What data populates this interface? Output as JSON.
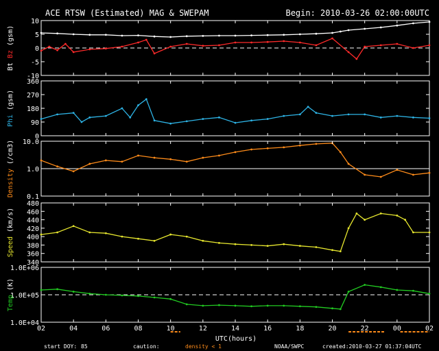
{
  "header": {
    "title": "ACE RTSW (Estimated) MAG & SWEPAM",
    "begin": "Begin: 2010-03-26 02:00:00UTC"
  },
  "footer": {
    "start_doy_label": "start DOY:",
    "start_doy": "85",
    "caution_label": "caution:",
    "caution_value": "density < 1",
    "agency": "NOAA/SWPC",
    "created": "created:2010-03-27 01:37:04UTC"
  },
  "colors": {
    "bt": "#ffffff",
    "bz": "#ff2a2a",
    "phi": "#2eb4e6",
    "density": "#ff8c1a",
    "speed": "#e6e62e",
    "temp": "#22cc22",
    "axis": "#ffffff",
    "background": "#000000"
  },
  "chart_data": {
    "type": "line",
    "x_axis": {
      "label": "UTC(hours)",
      "ticks": [
        "02",
        "04",
        "06",
        "08",
        "10",
        "12",
        "14",
        "16",
        "18",
        "20",
        "22",
        "00",
        "02"
      ],
      "range_hours": [
        2,
        26
      ]
    },
    "panels": [
      {
        "id": "mag",
        "ylabel_parts": [
          {
            "text": "Bt",
            "color": "#ffffff"
          },
          {
            "text": " Bz",
            "color": "#ff2a2a"
          },
          {
            "text": " (gsm)",
            "color": "#ffffff"
          }
        ],
        "ylim": [
          -10,
          10
        ],
        "scale": "linear",
        "ticks": [
          10,
          5,
          0,
          -5,
          -10
        ],
        "tick_labels": [
          "10",
          "5",
          "0",
          "-5",
          "-10"
        ],
        "reference_line": 0,
        "series": [
          {
            "name": "Bt",
            "color": "#ffffff",
            "x": [
              2,
              3,
              4,
              5,
              6,
              7,
              8,
              9,
              10,
              11,
              12,
              13,
              14,
              15,
              16,
              17,
              18,
              19,
              20,
              20.5,
              21,
              22,
              23,
              24,
              25,
              26
            ],
            "y": [
              5.5,
              5.3,
              5.0,
              4.8,
              4.8,
              4.5,
              4.6,
              4.2,
              4.0,
              4.3,
              4.4,
              4.5,
              4.5,
              4.6,
              4.7,
              4.8,
              5.0,
              5.2,
              5.5,
              6.0,
              6.5,
              7.0,
              7.5,
              8.2,
              9.0,
              9.5
            ]
          },
          {
            "name": "Bz",
            "color": "#ff2a2a",
            "x": [
              2,
              2.5,
              3,
              3.5,
              4,
              5,
              6,
              7,
              8,
              8.5,
              9,
              10,
              11,
              12,
              13,
              14,
              15,
              16,
              17,
              18,
              19,
              20,
              21,
              21.5,
              22,
              23,
              24,
              25,
              26
            ],
            "y": [
              -1,
              0.5,
              -0.8,
              1.5,
              -1.5,
              -0.5,
              -0.2,
              0.5,
              2.0,
              3.0,
              -2.0,
              0.5,
              1.5,
              0.8,
              1.0,
              2.0,
              2.0,
              2.2,
              2.5,
              2.0,
              1.0,
              3.5,
              -1.5,
              -4.0,
              0.5,
              1.0,
              1.5,
              0.0,
              1.0
            ]
          }
        ]
      },
      {
        "id": "phi",
        "ylabel_parts": [
          {
            "text": "Phi",
            "color": "#2eb4e6"
          },
          {
            "text": " (gsm)",
            "color": "#ffffff"
          }
        ],
        "ylim": [
          0,
          360
        ],
        "scale": "linear",
        "ticks": [
          360,
          270,
          180,
          90,
          0
        ],
        "tick_labels": [
          "360",
          "270",
          "180",
          "90",
          "0"
        ],
        "series": [
          {
            "name": "Phi",
            "color": "#2eb4e6",
            "x": [
              2,
              3,
              4,
              4.5,
              5,
              6,
              7,
              7.5,
              8,
              8.5,
              9,
              10,
              11,
              12,
              13,
              14,
              15,
              16,
              17,
              18,
              18.5,
              19,
              20,
              21,
              22,
              23,
              24,
              25,
              26
            ],
            "y": [
              110,
              140,
              150,
              90,
              120,
              130,
              180,
              120,
              200,
              240,
              100,
              80,
              95,
              110,
              120,
              85,
              100,
              110,
              130,
              140,
              190,
              150,
              130,
              140,
              140,
              120,
              130,
              120,
              115
            ]
          }
        ]
      },
      {
        "id": "density",
        "ylabel_parts": [
          {
            "text": "Density",
            "color": "#ff8c1a"
          },
          {
            "text": " (/cm3)",
            "color": "#ffffff"
          }
        ],
        "ylim": [
          0.1,
          10
        ],
        "scale": "log",
        "ticks": [
          10,
          1,
          0.1
        ],
        "tick_labels": [
          "10.0",
          "1.0",
          "0.1"
        ],
        "reference_line": 1,
        "series": [
          {
            "name": "Density",
            "color": "#ff8c1a",
            "x": [
              2,
              3,
              4,
              5,
              6,
              7,
              8,
              9,
              10,
              11,
              12,
              13,
              14,
              15,
              16,
              17,
              18,
              19,
              20,
              20.5,
              21,
              22,
              23,
              24,
              25,
              26
            ],
            "y": [
              2.0,
              1.2,
              0.8,
              1.5,
              2.0,
              1.8,
              3.0,
              2.5,
              2.2,
              1.8,
              2.5,
              3.0,
              4.0,
              5.0,
              5.5,
              6.0,
              7.0,
              8.0,
              8.5,
              4.0,
              1.5,
              0.6,
              0.5,
              0.9,
              0.6,
              0.7
            ]
          }
        ]
      },
      {
        "id": "speed",
        "ylabel_parts": [
          {
            "text": "Speed",
            "color": "#e6e62e"
          },
          {
            "text": " (km/s)",
            "color": "#ffffff"
          }
        ],
        "ylim": [
          340,
          480
        ],
        "scale": "linear",
        "ticks": [
          480,
          460,
          440,
          420,
          400,
          380,
          360,
          340
        ],
        "tick_labels": [
          "480",
          "460",
          "440",
          "420",
          "400",
          "380",
          "360",
          "340"
        ],
        "series": [
          {
            "name": "Speed",
            "color": "#e6e62e",
            "x": [
              2,
              3,
              4,
              5,
              6,
              7,
              8,
              9,
              10,
              11,
              12,
              13,
              14,
              15,
              16,
              17,
              18,
              19,
              20,
              20.5,
              21,
              21.5,
              22,
              23,
              24,
              24.5,
              25,
              26
            ],
            "y": [
              405,
              410,
              425,
              410,
              408,
              400,
              395,
              390,
              405,
              400,
              390,
              385,
              382,
              380,
              378,
              382,
              378,
              375,
              368,
              365,
              420,
              455,
              440,
              455,
              450,
              440,
              410,
              410
            ]
          }
        ]
      },
      {
        "id": "temp",
        "ylabel_parts": [
          {
            "text": "Temp",
            "color": "#22cc22"
          },
          {
            "text": " (K)",
            "color": "#ffffff"
          }
        ],
        "ylim": [
          10000,
          1000000
        ],
        "scale": "log",
        "ticks": [
          1000000,
          100000,
          10000
        ],
        "tick_labels": [
          "1.0E+06",
          "1.0E+05",
          "1.0E+04"
        ],
        "reference_line": 100000,
        "series": [
          {
            "name": "Temp",
            "color": "#22cc22",
            "x": [
              2,
              3,
              4,
              5,
              6,
              7,
              8,
              9,
              10,
              11,
              12,
              13,
              14,
              15,
              16,
              17,
              18,
              19,
              20,
              20.5,
              21,
              22,
              23,
              24,
              25,
              26
            ],
            "y": [
              150000,
              160000,
              130000,
              110000,
              100000,
              95000,
              90000,
              80000,
              70000,
              45000,
              40000,
              42000,
              40000,
              38000,
              40000,
              40000,
              38000,
              36000,
              32000,
              30000,
              130000,
              230000,
              190000,
              150000,
              140000,
              110000
            ]
          }
        ]
      }
    ]
  }
}
